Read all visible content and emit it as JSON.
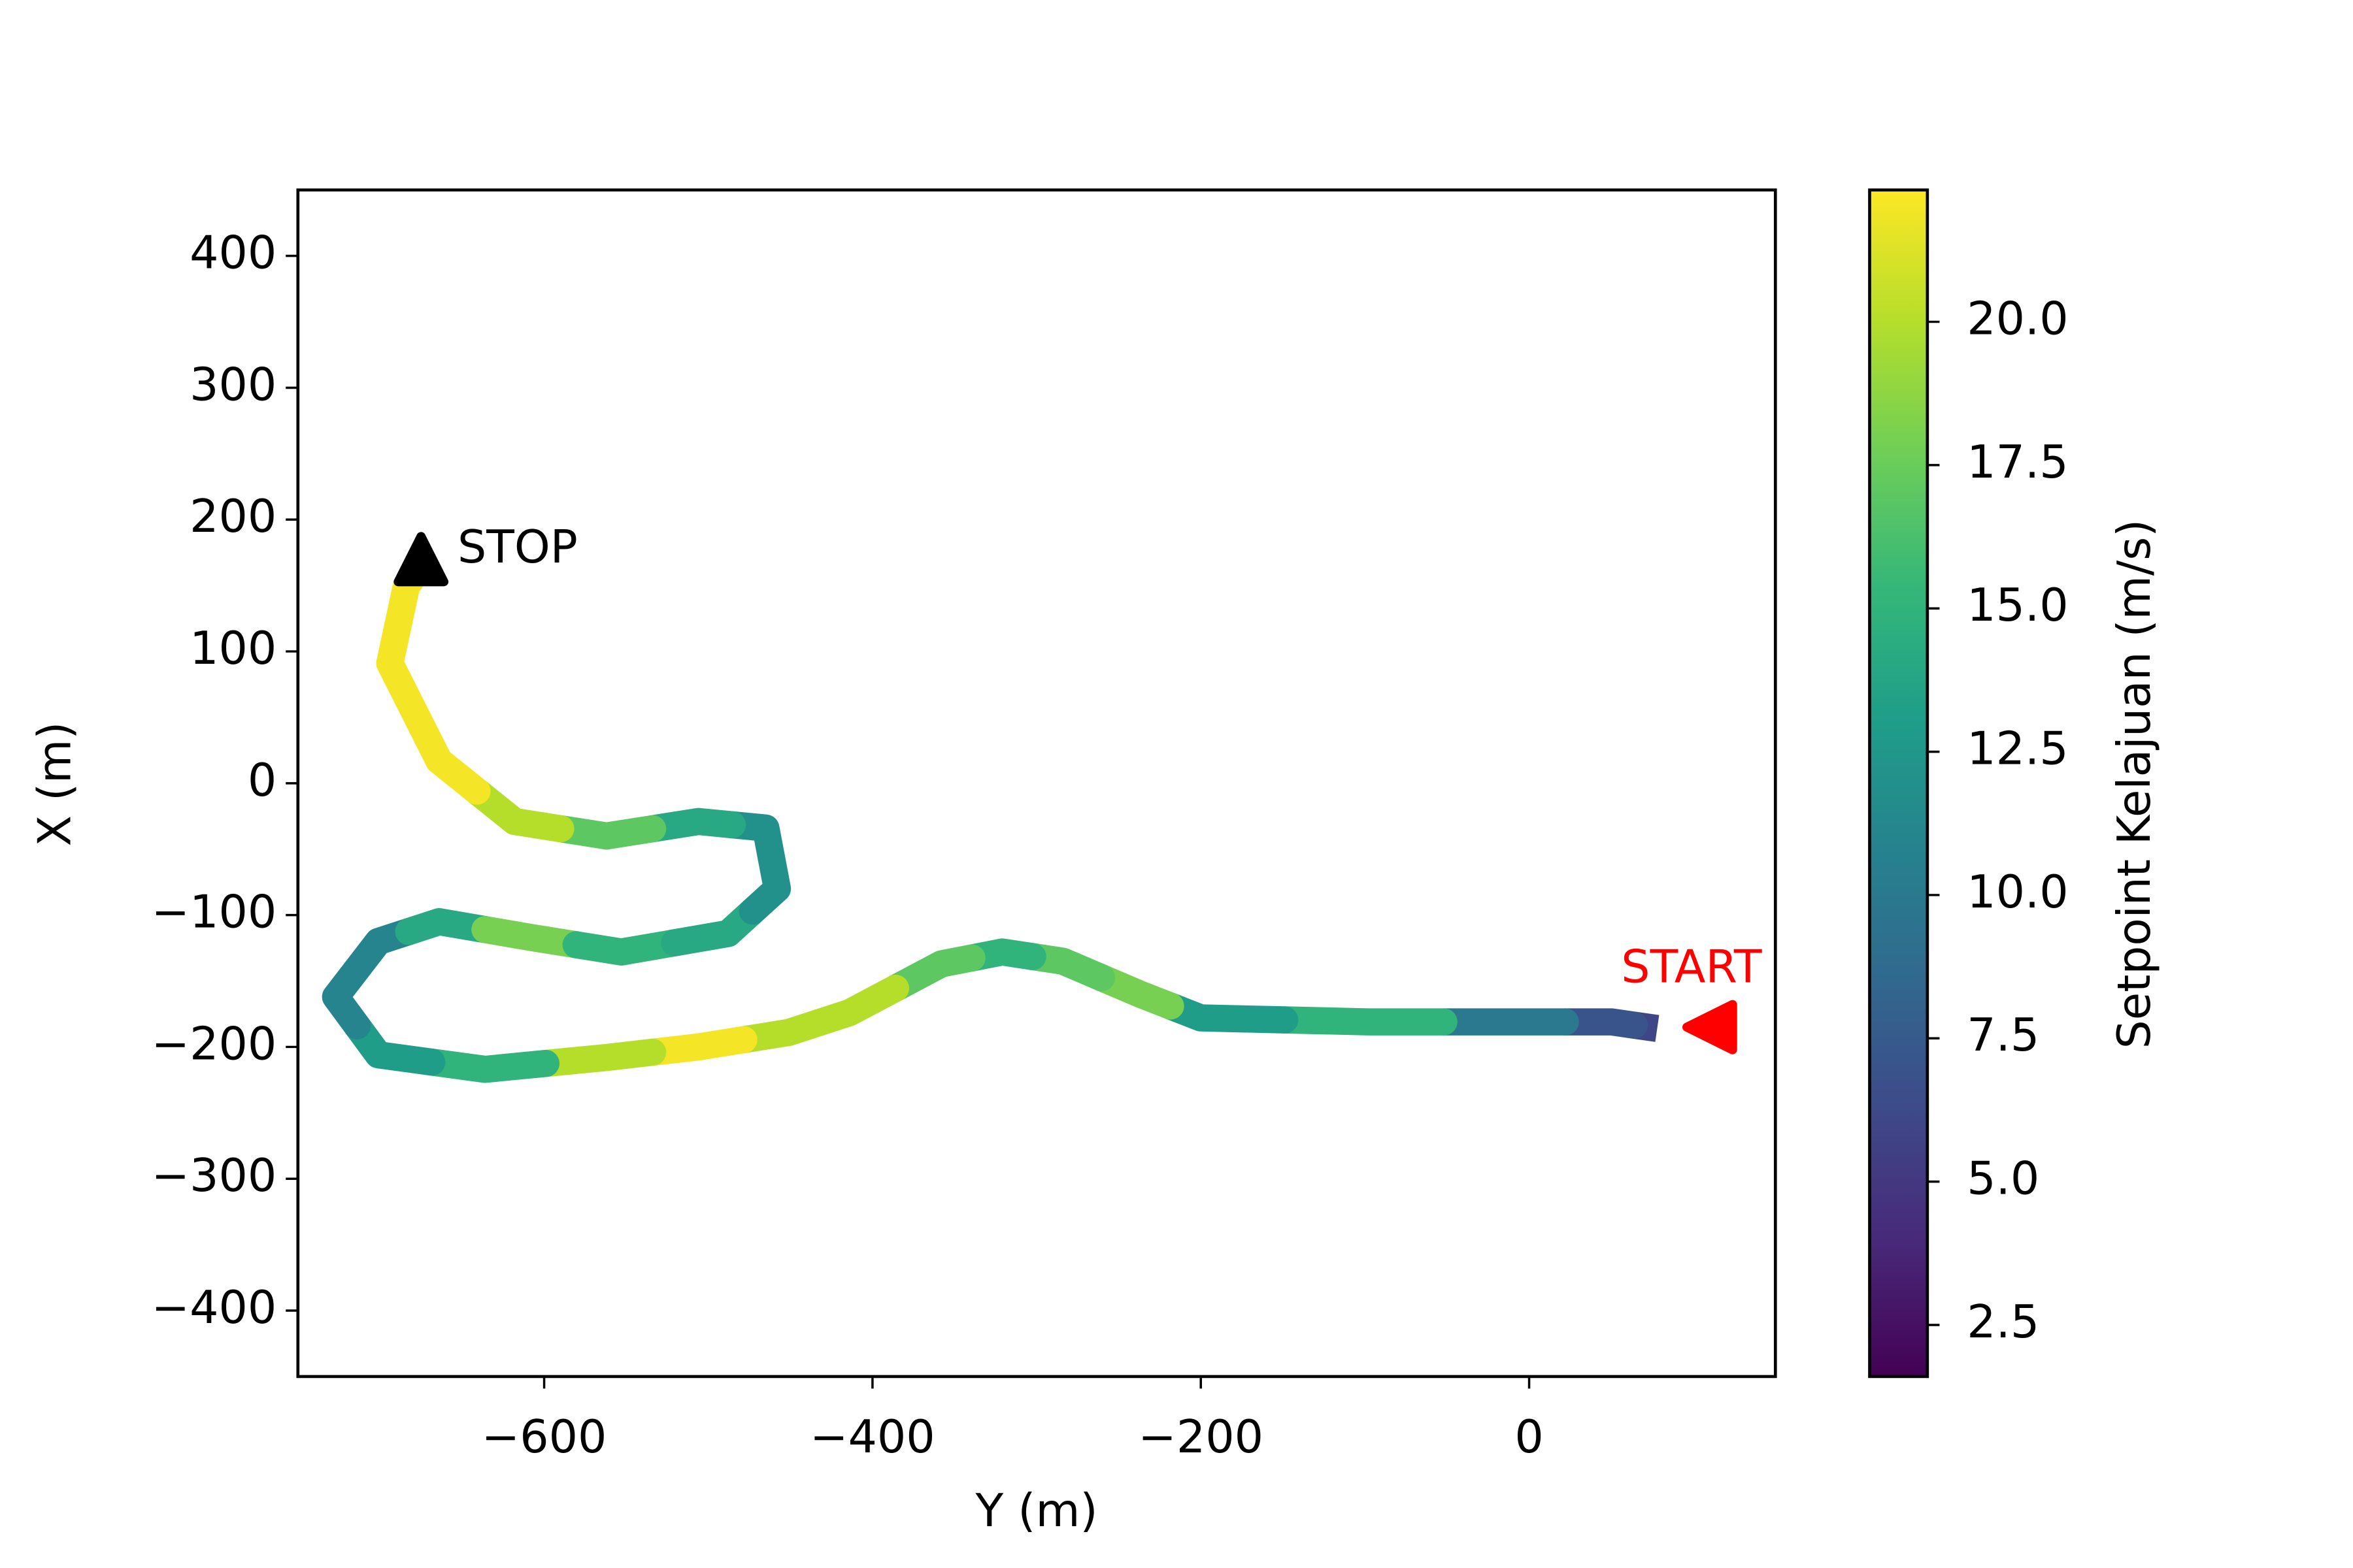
{
  "chart_data": {
    "type": "line",
    "xlabel": "Y (m)",
    "ylabel": "X (m)",
    "colorbar_label": "Setpoint Kelajuan (m/s)",
    "xlim": [
      -750,
      150
    ],
    "ylim": [
      -450,
      450
    ],
    "xticks": [
      {
        "value": -600,
        "label": "−600"
      },
      {
        "value": -400,
        "label": "−400"
      },
      {
        "value": -200,
        "label": "−200"
      },
      0
    ],
    "yticks": [
      {
        "value": -400,
        "label": "−400"
      },
      {
        "value": -300,
        "label": "−300"
      },
      {
        "value": -200,
        "label": "−200"
      },
      {
        "value": -100,
        "label": "−100"
      },
      0,
      100,
      200,
      300,
      400
    ],
    "clim": [
      1.6,
      22.3
    ],
    "cticks": [
      2.5,
      {
        "value": 5,
        "label": "5.0"
      },
      7.5,
      {
        "value": 10,
        "label": "10.0"
      },
      12.5,
      {
        "value": 15,
        "label": "15.0"
      },
      17.5,
      {
        "value": 20,
        "label": "20.0"
      }
    ],
    "colormap": [
      "#440154",
      "#482878",
      "#3e4989",
      "#31688e",
      "#26828e",
      "#1f9e89",
      "#35b779",
      "#6ece58",
      "#b5de2b",
      "#fde725"
    ],
    "series": [
      {
        "x": [
          78,
          50,
          -6,
          -98,
          -200,
          -237,
          -284,
          -321,
          -358,
          -414,
          -451,
          -506,
          -562,
          -636,
          -701,
          -727,
          -701,
          -664,
          -608,
          -553,
          -488,
          -458,
          -465,
          -506,
          -562,
          -618,
          -664,
          -694,
          -684,
          -675
        ],
        "values": [
          -186,
          -181,
          -181,
          -181,
          -178,
          -160,
          -135,
          -128,
          -137,
          -174,
          -189,
          -200,
          -208,
          -217,
          -206,
          -162,
          -120,
          -105,
          -117,
          -128,
          -114,
          -80,
          -34,
          -29,
          -40,
          -29,
          17,
          91,
          149,
          166
        ],
        "speed": [
          6,
          7,
          10,
          15,
          13,
          18,
          17,
          15,
          17,
          20,
          20,
          22,
          20,
          15,
          13,
          11,
          11,
          14,
          18,
          15,
          14,
          12,
          12,
          14,
          17,
          20,
          22,
          22,
          22,
          22
        ]
      }
    ],
    "annotations": [
      {
        "text": "START",
        "x": 110,
        "y": -185,
        "marker": "<",
        "color": "#ff0000"
      },
      {
        "text": "STOP",
        "x": -675,
        "y": 170,
        "marker": "^",
        "color": "#000000"
      }
    ]
  }
}
